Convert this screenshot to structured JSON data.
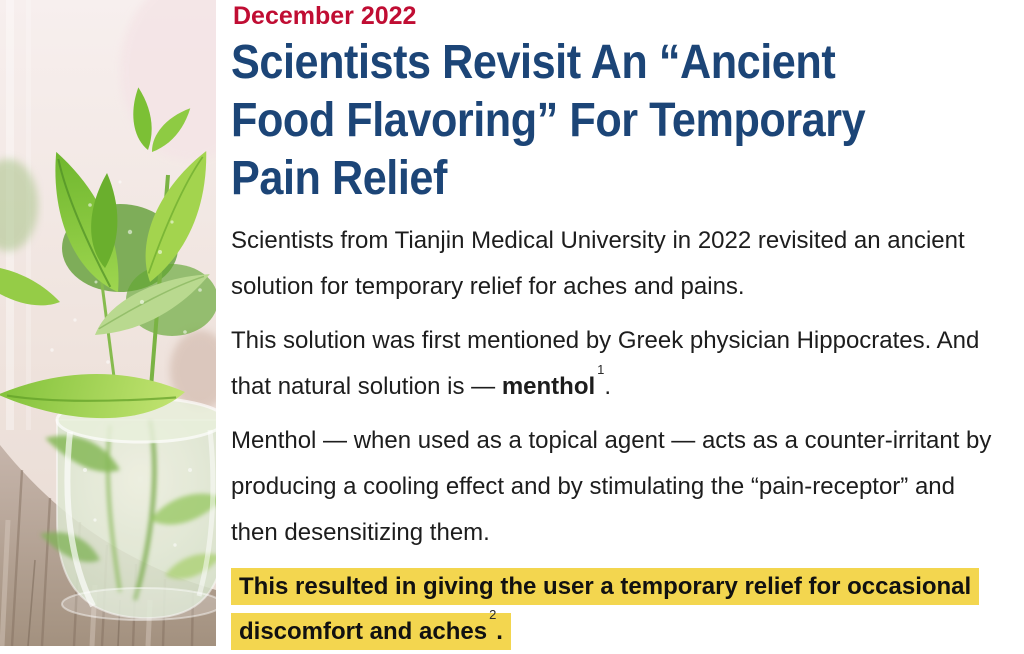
{
  "article": {
    "date": "December 2022",
    "title": "Scientists Revisit An “Ancient Food Flavoring” For Temporary Pain Relief",
    "title_lines": [
      "Scientists Revisit An “Ancient",
      "Food Flavoring” For Temporary",
      "Pain Relief"
    ],
    "paragraphs": [
      {
        "highlight": false,
        "segments": [
          {
            "t": "Scientists from Tianjin Medical University in 2022 revisited an ancient solution for temporary relief for aches and pains.",
            "s": "n"
          }
        ]
      },
      {
        "highlight": false,
        "segments": [
          {
            "t": "This solution was first mentioned by Greek physician Hippocrates. And that natural solution is — ",
            "s": "n"
          },
          {
            "t": "menthol",
            "s": "b"
          },
          {
            "t": "1",
            "s": "sup"
          },
          {
            "t": ".",
            "s": "n"
          }
        ]
      },
      {
        "highlight": false,
        "segments": [
          {
            "t": "Menthol — when used as a topical agent — acts as a counter-irritant by producing a cooling effect and by stimulating the “pain-receptor” and then desensitizing them.",
            "s": "n"
          }
        ]
      },
      {
        "highlight": true,
        "segments": [
          {
            "t": "This resulted in giving the user a temporary relief for occasional discomfort and aches",
            "s": "b"
          },
          {
            "t": "2",
            "s": "sup"
          },
          {
            "t": ".",
            "s": "b"
          }
        ]
      }
    ],
    "footnote_refs": [
      "1",
      "2"
    ]
  },
  "image": {
    "name": "mint-photo",
    "description": "Fresh mint leaves in a glass of water on a wooden table",
    "palette": {
      "leaf_green": "#7cba32",
      "pale_leaf": "#b9d98f",
      "wood": "#b3a195",
      "background_pink": "#f5edec",
      "glass_water": "#dfe9d2"
    }
  },
  "colors": {
    "accent_red": "#c00d33",
    "heading_navy": "#1c4577",
    "body_text": "#1d1d1d",
    "highlight_yellow": "#f3d64f",
    "page_background": "#ffffff"
  }
}
